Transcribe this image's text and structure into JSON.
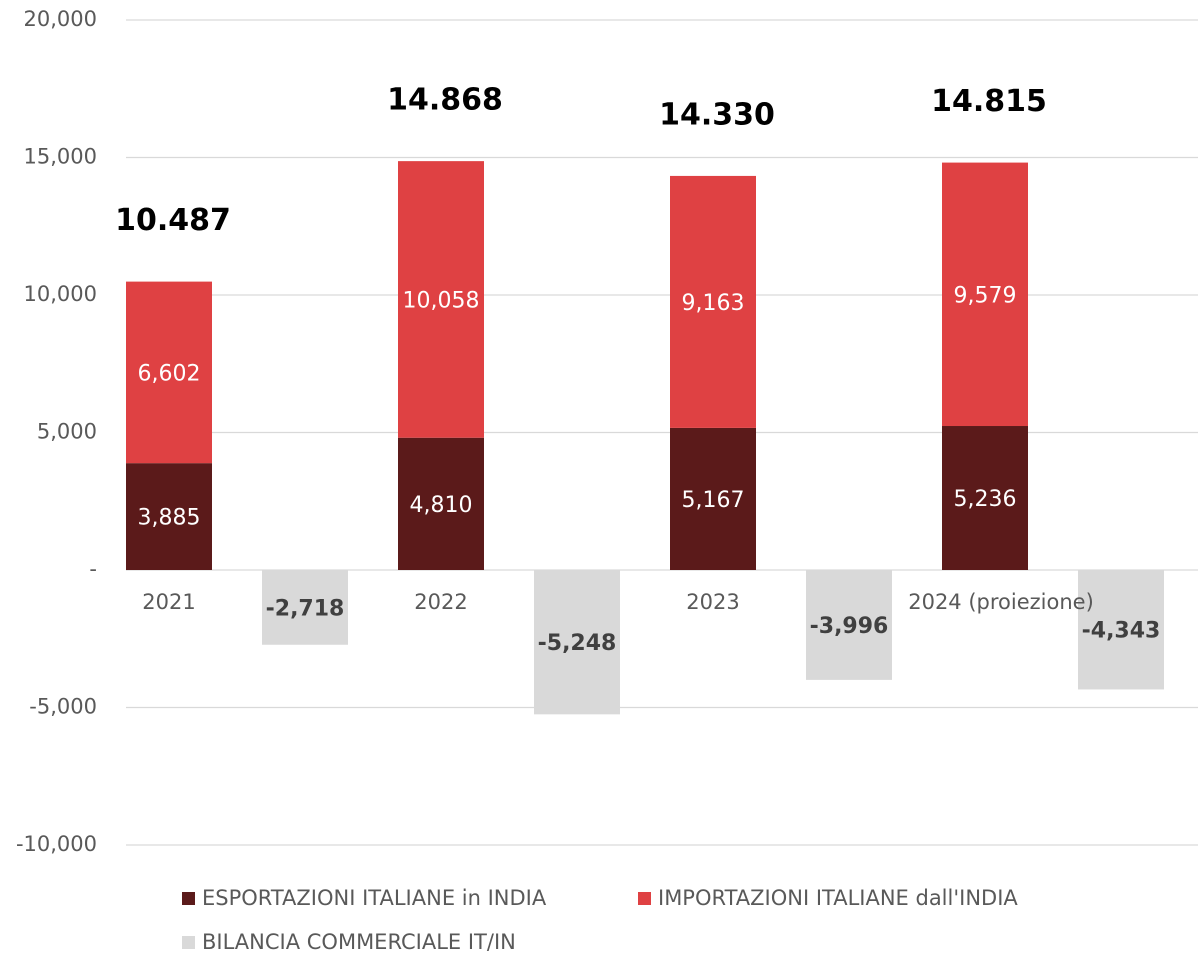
{
  "chart_data": {
    "type": "bar",
    "categories": [
      "2021",
      "2022",
      "2023",
      "2024 (proiezione)"
    ],
    "series": [
      {
        "name": "ESPORTAZIONI ITALIANE in INDIA",
        "color": "#5b1a1a",
        "stack": "trade",
        "values": [
          3885,
          4810,
          5167,
          5236
        ],
        "value_labels": [
          "3,885",
          "4,810",
          "5,167",
          "5,236"
        ]
      },
      {
        "name": "IMPORTAZIONI ITALIANE dall'INDIA",
        "color": "#df4143",
        "stack": "trade",
        "values": [
          6602,
          10058,
          9163,
          9579
        ],
        "value_labels": [
          "6,602",
          "10,058",
          "9,163",
          "9,579"
        ]
      },
      {
        "name": "BILANCIA COMMERCIALE IT/IN",
        "color": "#d9d9d9",
        "stack": "balance",
        "values": [
          -2718,
          -5248,
          -3996,
          -4343
        ],
        "value_labels": [
          "-2,718",
          "-5,248",
          "-3,996",
          "-4,343"
        ]
      }
    ],
    "totals": {
      "values": [
        10487,
        14868,
        14330,
        14815
      ],
      "value_labels": [
        "10.487",
        "14.868",
        "14.330",
        "14.815"
      ]
    },
    "ylim": [
      -10000,
      20000
    ],
    "yticks": [
      {
        "value": -10000,
        "label": "-10,000"
      },
      {
        "value": -5000,
        "label": "-5,000"
      },
      {
        "value": 0,
        "label": "-"
      },
      {
        "value": 5000,
        "label": "5,000"
      },
      {
        "value": 10000,
        "label": "10,000"
      },
      {
        "value": 15000,
        "label": "15,000"
      },
      {
        "value": 20000,
        "label": "20,000"
      }
    ],
    "grid": true,
    "legend": "bottom"
  }
}
